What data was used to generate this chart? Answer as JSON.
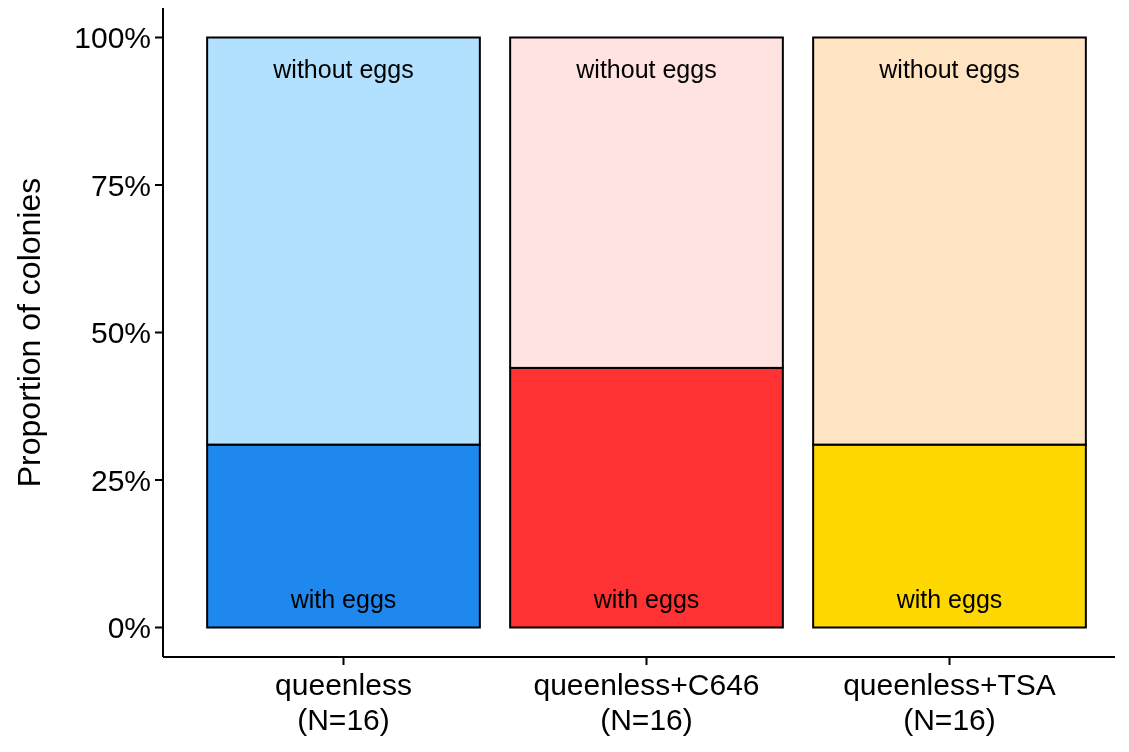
{
  "chart_data": {
    "type": "bar",
    "stacked": true,
    "ylabel": "Proportion of colonies",
    "categories": [
      "queenless\n(N=16)",
      "queenless+C646\n(N=16)",
      "queenless+TSA\n(N=16)"
    ],
    "series": [
      {
        "name": "with eggs",
        "colors": [
          "#1e88ee",
          "#fe3232",
          "#fed700"
        ],
        "values": [
          31,
          44,
          31
        ]
      },
      {
        "name": "without eggs",
        "colors": [
          "#b1e1fe",
          "#fee3e1",
          "#fee4c3"
        ],
        "values": [
          69,
          56,
          69
        ]
      }
    ],
    "ylim": [
      -5,
      105
    ],
    "yticks": [
      {
        "value": 0,
        "label": "0%"
      },
      {
        "value": 25,
        "label": "25%"
      },
      {
        "value": 50,
        "label": "50%"
      },
      {
        "value": 75,
        "label": "75%"
      },
      {
        "value": 100,
        "label": "100%"
      }
    ],
    "grid": false,
    "legend": false
  }
}
